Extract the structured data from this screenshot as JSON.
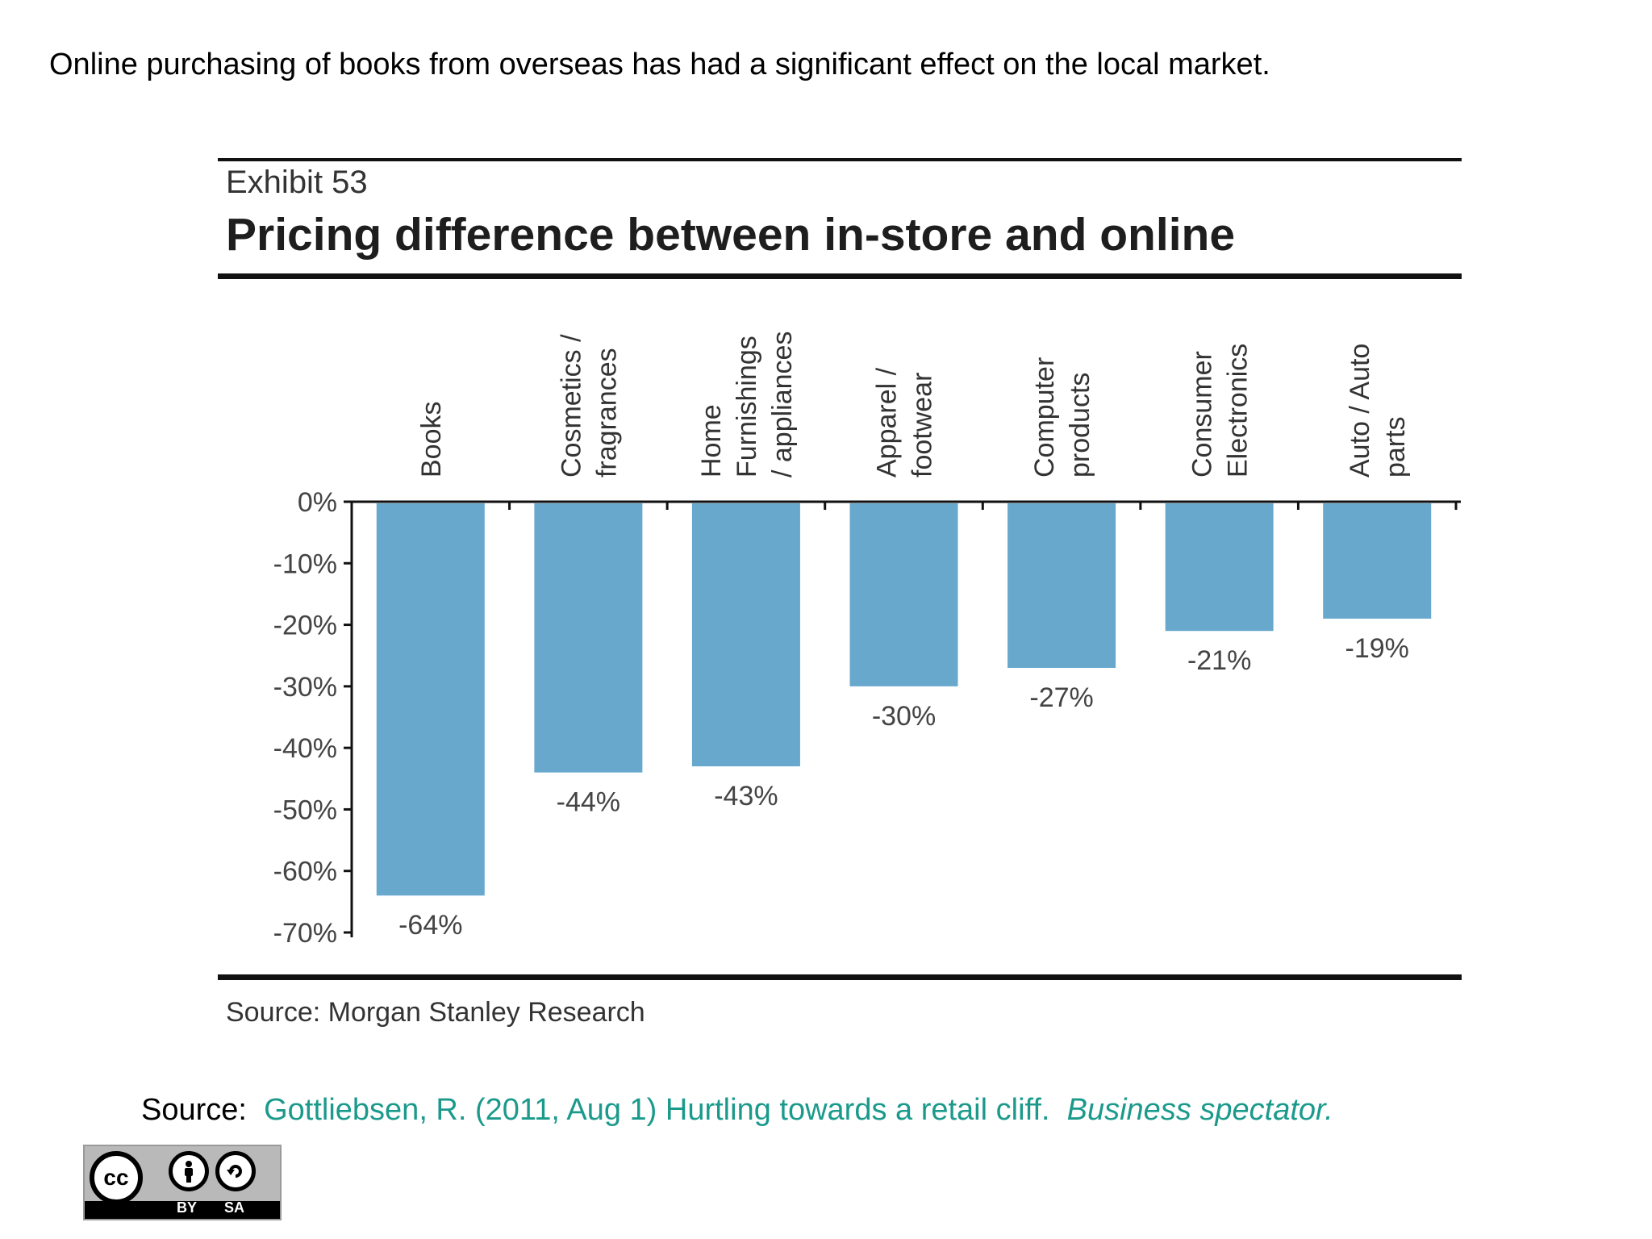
{
  "intro_text": "Online purchasing of books from overseas has had a significant effect on the local market.",
  "exhibit": {
    "number": "Exhibit 53",
    "source": "Source: Morgan Stanley Research"
  },
  "chart_data": {
    "type": "bar",
    "title": "Pricing difference between in-store and online",
    "categories": [
      [
        "Books"
      ],
      [
        "Cosmetics /",
        "fragrances"
      ],
      [
        "Home",
        "Furnishings",
        "/ appliances"
      ],
      [
        "Apparel /",
        "footwear"
      ],
      [
        "Computer",
        "products"
      ],
      [
        "Consumer",
        "Electronics"
      ],
      [
        "Auto / Auto",
        "parts"
      ]
    ],
    "values": [
      -64,
      -44,
      -43,
      -30,
      -27,
      -21,
      -19
    ],
    "value_labels": [
      "-64%",
      "-44%",
      "-43%",
      "-30%",
      "-27%",
      "-21%",
      "-19%"
    ],
    "yticks": [
      0,
      -10,
      -20,
      -30,
      -40,
      -50,
      -60,
      -70
    ],
    "ytick_labels": [
      "0%",
      "-10%",
      "-20%",
      "-30%",
      "-40%",
      "-50%",
      "-60%",
      "-70%"
    ],
    "ylim": [
      -70,
      0
    ],
    "xlabel": "",
    "ylabel": "",
    "grid": false,
    "bar_color": "#68a8cd"
  },
  "citation": {
    "prefix": "Source:",
    "reference": "Gottliebsen, R. (2011, Aug 1) Hurtling towards a retail cliff.",
    "journal": "Business spectator."
  },
  "license": {
    "cc": "cc",
    "by_label": "BY",
    "sa_label": "SA",
    "icons": [
      "cc-icon",
      "by-person-icon",
      "share-alike-icon"
    ]
  }
}
